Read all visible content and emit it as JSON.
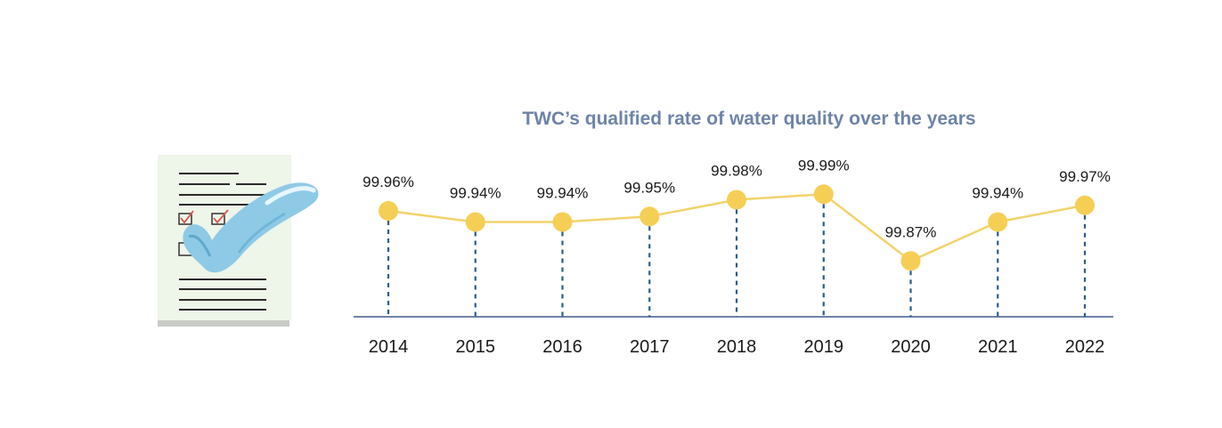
{
  "chart_data": {
    "type": "line",
    "title": "TWC’s qualified rate of water quality over the years",
    "categories": [
      "2014",
      "2015",
      "2016",
      "2017",
      "2018",
      "2019",
      "2020",
      "2021",
      "2022"
    ],
    "values": [
      99.96,
      99.94,
      99.94,
      99.95,
      99.98,
      99.99,
      99.87,
      99.94,
      99.97
    ],
    "data_labels": [
      "99.96%",
      "99.94%",
      "99.94%",
      "99.95%",
      "99.98%",
      "99.99%",
      "99.87%",
      "99.94%",
      "99.97%"
    ],
    "xlabel": "",
    "ylabel": "",
    "grid": false,
    "colors": {
      "line": "#f2d36b",
      "marker": "#f5cf55",
      "dropline": "#2a5d8f",
      "axis": "#6e84a8",
      "title": "#6e84a8"
    }
  },
  "decoration": {
    "icon": "water-quality-checklist-icon"
  }
}
